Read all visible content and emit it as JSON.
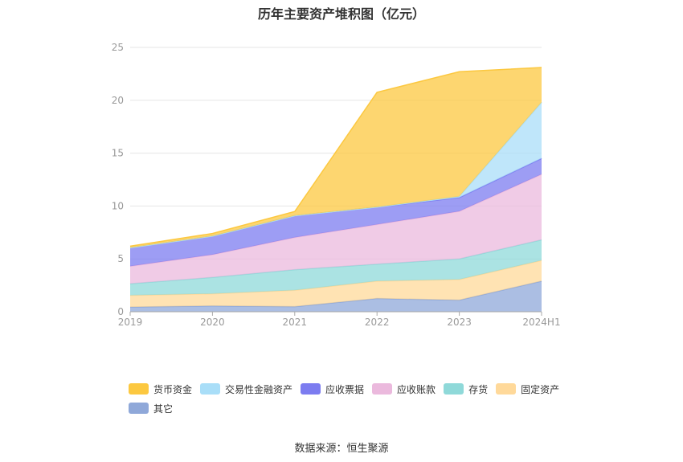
{
  "chart_data": {
    "type": "area",
    "stacked": true,
    "title": "历年主要资产堆积图（亿元）",
    "categories": [
      "2019",
      "2020",
      "2021",
      "2022",
      "2023",
      "2024H1"
    ],
    "y_ticks": [
      "0",
      "5",
      "10",
      "15",
      "20",
      "25"
    ],
    "ylim": [
      0,
      25
    ],
    "grid": true,
    "legend_position": "bottom",
    "series": [
      {
        "name": "其它",
        "color": "#8fa8d9",
        "values": [
          0.45,
          0.55,
          0.48,
          1.25,
          1.1,
          2.9
        ]
      },
      {
        "name": "固定资产",
        "color": "#ffd99a",
        "values": [
          1.1,
          1.15,
          1.55,
          1.65,
          1.95,
          1.95
        ]
      },
      {
        "name": "存货",
        "color": "#8fd9d9",
        "values": [
          1.1,
          1.55,
          1.95,
          1.6,
          1.95,
          1.95
        ]
      },
      {
        "name": "应收账款",
        "color": "#ebb9dd",
        "values": [
          1.65,
          2.15,
          3.05,
          3.75,
          4.5,
          6.2
        ]
      },
      {
        "name": "应收票据",
        "color": "#7c7cf0",
        "values": [
          1.75,
          1.75,
          2.05,
          1.65,
          1.3,
          1.5
        ]
      },
      {
        "name": "交易性金融资产",
        "color": "#a9def8",
        "values": [
          0,
          0,
          0,
          0,
          0.1,
          5.3
        ]
      },
      {
        "name": "货币资金",
        "color": "#fcc840",
        "values": [
          0.15,
          0.25,
          0.4,
          10.85,
          11.8,
          3.3
        ]
      }
    ]
  },
  "legend_order": [
    6,
    5,
    4,
    3,
    2,
    1,
    0
  ],
  "source_text": "数据来源：恒生聚源"
}
